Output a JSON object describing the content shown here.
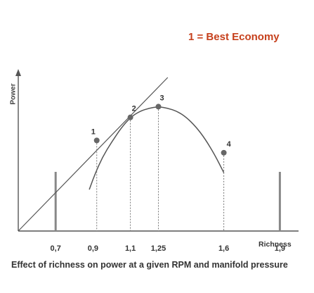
{
  "chart_data": {
    "type": "line",
    "title": "",
    "caption": "Effect of richness on power at a given RPM and manifold pressure",
    "annotation": "1 = Best Economy",
    "xlabel": "Richness",
    "ylabel": "Power",
    "x_ticks": [
      "0,7",
      "0,9",
      "1,1",
      "1,25",
      "1,6",
      "1,9"
    ],
    "x_tick_values": [
      0.7,
      0.9,
      1.1,
      1.25,
      1.6,
      1.9
    ],
    "xlim": [
      0.5,
      2.0
    ],
    "ylim": [
      0,
      1.0
    ],
    "grid": false,
    "series": [
      {
        "name": "",
        "x": [
          0.88,
          0.91,
          0.95,
          1.0,
          1.05,
          1.1,
          1.15,
          1.2,
          1.25,
          1.3,
          1.35,
          1.4,
          1.45,
          1.5,
          1.55,
          1.6
        ],
        "y": [
          0.27,
          0.37,
          0.48,
          0.58,
          0.67,
          0.74,
          0.78,
          0.8,
          0.81,
          0.8,
          0.78,
          0.74,
          0.68,
          0.6,
          0.5,
          0.38
        ]
      }
    ],
    "points": [
      {
        "label": "1",
        "x": 0.92,
        "y": 0.59
      },
      {
        "label": "2",
        "x": 1.1,
        "y": 0.74
      },
      {
        "label": "3",
        "x": 1.25,
        "y": 0.81
      },
      {
        "label": "4",
        "x": 1.6,
        "y": 0.51
      }
    ],
    "tangent_line": {
      "x": [
        0.5,
        1.3
      ],
      "y": [
        0.0,
        1.0
      ]
    },
    "vertical_bars": [
      0.7,
      1.9
    ],
    "colors": {
      "annotation": "#c6401c",
      "ink": "#555555",
      "marker": "#666666"
    }
  }
}
